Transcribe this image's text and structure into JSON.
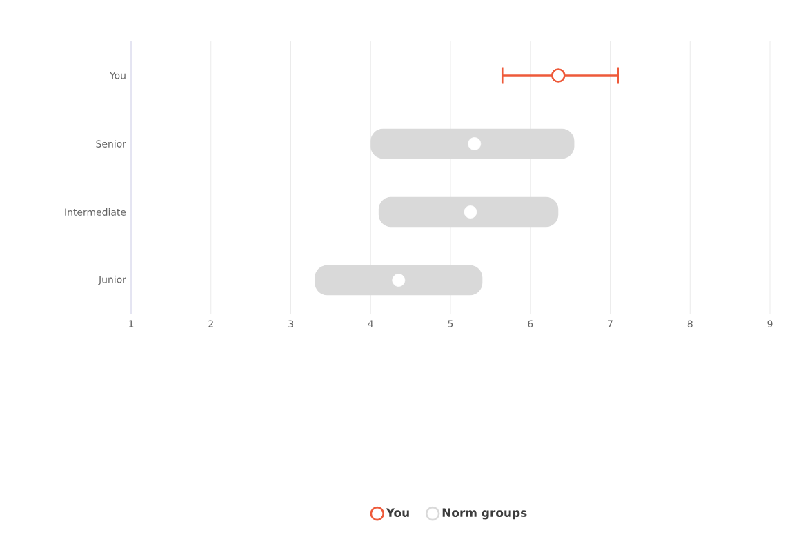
{
  "chart_data": {
    "type": "bar",
    "orientation": "horizontal",
    "categories": [
      "You",
      "Senior",
      "Intermediate",
      "Junior"
    ],
    "series": [
      {
        "name": "You",
        "type": "scatter",
        "color": "#ee5a3a",
        "values": [
          6.35,
          null,
          null,
          null
        ],
        "errors": [
          [
            5.65,
            7.1
          ],
          null,
          null,
          null
        ]
      },
      {
        "name": "Norm groups",
        "type": "bar",
        "color": "#d9d9d9",
        "base": [
          null,
          4.0,
          4.1,
          3.3
        ],
        "values": [
          null,
          2.55,
          2.25,
          2.1
        ]
      },
      {
        "type": "scatter",
        "color": "#ffffff",
        "values": [
          null,
          5.3,
          5.25,
          4.35
        ]
      }
    ],
    "xlim": [
      1,
      9
    ],
    "xticks": [
      1,
      2,
      3,
      4,
      5,
      6,
      7,
      8,
      9
    ],
    "grid": "x",
    "legend": "bottom",
    "marker": "circle"
  }
}
